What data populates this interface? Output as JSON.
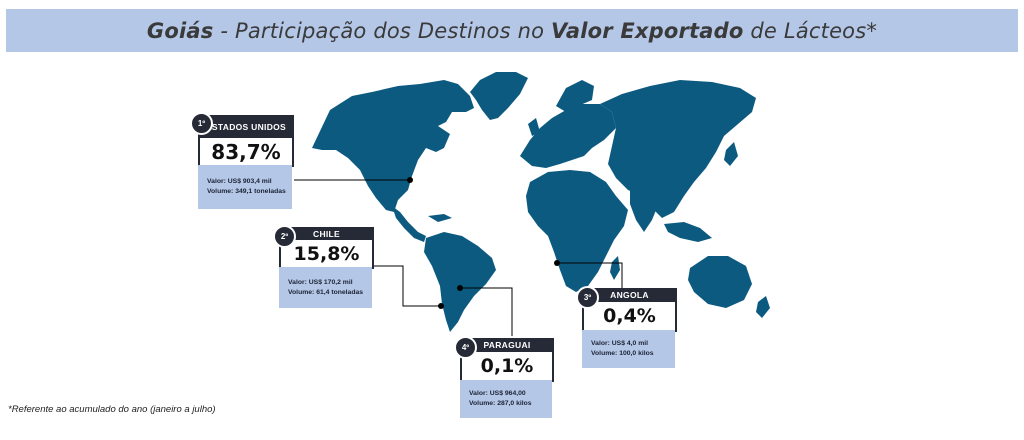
{
  "title": {
    "region": "Goiás",
    "sep": " - Participação dos Destinos no ",
    "metric": "Valor Exportado",
    "suffix": " de Lácteos*"
  },
  "colors": {
    "map": "#0d5a80",
    "header": "#252a36",
    "panel": "#b4c7e7"
  },
  "destinations": [
    {
      "rank": "1º",
      "name": "ESTADOS UNIDOS",
      "share": "83,7%",
      "valor": "Valor: US$ 903,4 mil",
      "volume": "Volume: 349,1 toneladas"
    },
    {
      "rank": "2º",
      "name": "CHILE",
      "share": "15,8%",
      "valor": "Valor: US$ 170,2 mil",
      "volume": "Volume: 61,4 toneladas"
    },
    {
      "rank": "3º",
      "name": "ANGOLA",
      "share": "0,4%",
      "valor": "Valor: US$ 4,0 mil",
      "volume": "Volume: 100,0 kilos"
    },
    {
      "rank": "4º",
      "name": "PARAGUAI",
      "share": "0,1%",
      "valor": "Valor: US$ 964,00",
      "volume": "Volume: 287,0 kilos"
    }
  ],
  "footnote": "*Referente ao acumulado do ano (janeiro a julho)"
}
